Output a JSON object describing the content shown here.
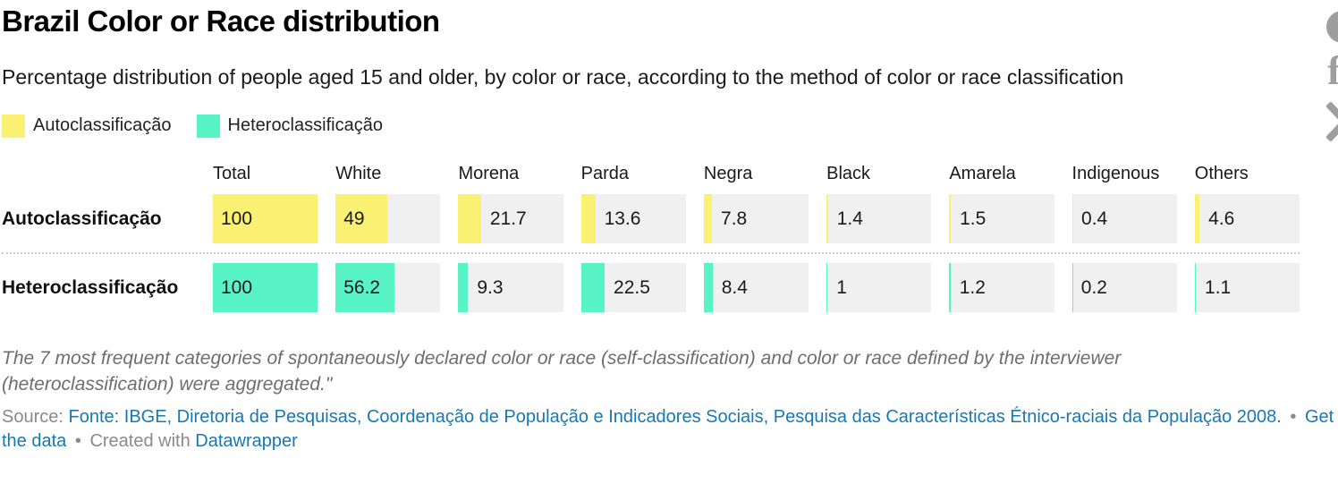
{
  "header": {
    "title": "Brazil Color or Race distribution",
    "subtitle": "Percentage distribution of people aged 15 and older, by color or race, according to the method of color or race classification"
  },
  "legend": {
    "items": [
      {
        "label": "Autoclassificação",
        "color": "#FAF172"
      },
      {
        "label": "Heteroclassificação",
        "color": "#59F4C6"
      }
    ]
  },
  "chart_data": {
    "type": "bar",
    "title": "Brazil Color or Race distribution",
    "subtitle": "Percentage distribution of people aged 15 and older, by color or race, according to the method of color or race classification",
    "categories": [
      "Total",
      "White",
      "Morena",
      "Parda",
      "Negra",
      "Black",
      "Amarela",
      "Indigenous",
      "Others"
    ],
    "series": [
      {
        "name": "Autoclassificação",
        "color": "#FAF172",
        "values": [
          100,
          49,
          21.7,
          13.6,
          7.8,
          1.4,
          1.5,
          0.4,
          4.6
        ]
      },
      {
        "name": "Heteroclassificação",
        "color": "#59F4C6",
        "values": [
          100,
          56.2,
          9.3,
          22.5,
          8.4,
          1,
          1.2,
          0.2,
          1.1
        ]
      }
    ],
    "value_range": [
      0,
      100
    ],
    "track_color": "#F0F0F0",
    "legend_position": "top",
    "grid": false
  },
  "footnote": "The 7 most frequent categories of spontaneously declared color or race (self-classification) and color or race defined by the interviewer (heteroclassification) were aggregated.\"",
  "source": {
    "prefix": "Source:",
    "link_text": "Fonte: IBGE, Diretoria de Pesquisas, Coordenação de População e Indicadores Sociais, Pesquisa das Características Étnico-raciais da População 2008.",
    "bullet": "•",
    "get_data_label": "Get the data",
    "created_with_label": "Created with",
    "datawrapper_label": "Datawrapper"
  },
  "icons": {
    "share_circle": "share-circle-icon",
    "facebook": "facebook-icon",
    "x_twitter": "x-twitter-icon",
    "facebook_glyph": "f",
    "color": "#9e9e9e"
  },
  "colors": {
    "auto_yellow": "#FAF172",
    "hetero_teal": "#59F4C6",
    "bar_track": "#F0F0F0",
    "link_blue": "#1878B4",
    "text_dark": "#1a1a1a",
    "footnote_gray": "#6e6e6e",
    "source_gray": "#8a8a8a",
    "icon_gray": "#9e9e9e",
    "dotted_separator": "#c9c9c9"
  }
}
